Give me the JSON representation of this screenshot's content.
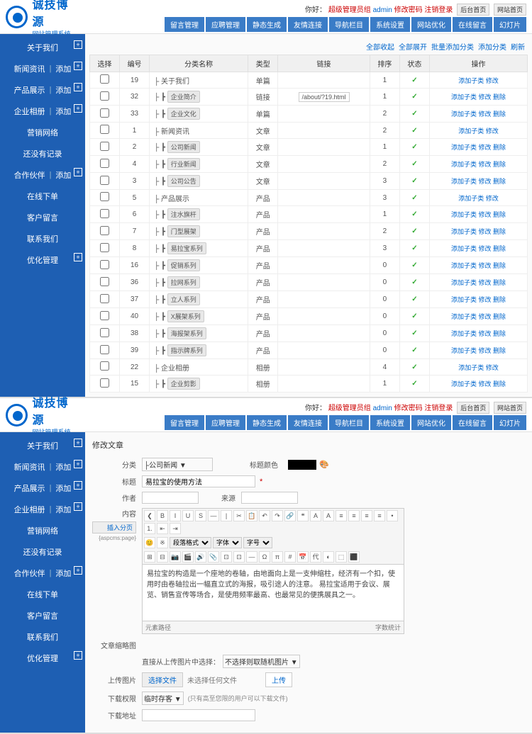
{
  "brand": {
    "main": "诚技博源",
    "sub": "网站管理系统"
  },
  "userbar": {
    "prefix": "你好：",
    "role": "超级管理员组",
    "user": "admin",
    "chpwd": "修改密码",
    "logout": "注销登录",
    "btn1": "后台首页",
    "btn2": "网站首页"
  },
  "nav": [
    "留言管理",
    "应聘管理",
    "静态生成",
    "友情连接",
    "导航栏目",
    "系统设置",
    "网站优化",
    "在线留言",
    "幻灯片"
  ],
  "sidebar": [
    {
      "label": "关于我们",
      "plus": true
    },
    {
      "label": "新闻资讯",
      "extra": "添加",
      "plus": true
    },
    {
      "label": "产品展示",
      "extra": "添加",
      "plus": true
    },
    {
      "label": "企业相册",
      "extra": "添加",
      "plus": true
    },
    {
      "label": "营销网络"
    },
    {
      "label": "还没有记录"
    },
    {
      "label": "合作伙伴",
      "extra": "添加",
      "plus": true
    },
    {
      "label": "在线下单"
    },
    {
      "label": "客户留言"
    },
    {
      "label": "联系我们"
    },
    {
      "label": "优化管理",
      "plus": true
    }
  ],
  "toolbar": [
    "全部收起",
    "全部展开",
    "批量添加分类",
    "添加分类",
    "刷新"
  ],
  "cols": [
    "选择",
    "编号",
    "分类名称",
    "类型",
    "链接",
    "排序",
    "状态",
    "操作"
  ],
  "rows": [
    {
      "id": 19,
      "t": 0,
      "name": "关于我们",
      "type": "单篇",
      "link": "",
      "sort": 1,
      "raw": true
    },
    {
      "id": 32,
      "t": 1,
      "name": "企业简介",
      "type": "链接",
      "link": "/about/?19.html",
      "sort": 1
    },
    {
      "id": 33,
      "t": 1,
      "name": "企业文化",
      "type": "单篇",
      "link": "",
      "sort": 2
    },
    {
      "id": 1,
      "t": 0,
      "name": "新闻资讯",
      "type": "文章",
      "link": "",
      "sort": 2,
      "raw": true
    },
    {
      "id": 2,
      "t": 1,
      "name": "公司新闻",
      "type": "文章",
      "link": "",
      "sort": 1
    },
    {
      "id": 4,
      "t": 1,
      "name": "行业新闻",
      "type": "文章",
      "link": "",
      "sort": 2
    },
    {
      "id": 3,
      "t": 1,
      "name": "公司公告",
      "type": "文章",
      "link": "",
      "sort": 3
    },
    {
      "id": 5,
      "t": 0,
      "name": "产品展示",
      "type": "产品",
      "link": "",
      "sort": 3,
      "raw": true
    },
    {
      "id": 6,
      "t": 1,
      "name": "注水旗杆",
      "type": "产品",
      "link": "",
      "sort": 1
    },
    {
      "id": 7,
      "t": 1,
      "name": "门型展架",
      "type": "产品",
      "link": "",
      "sort": 2
    },
    {
      "id": 8,
      "t": 1,
      "name": "易拉宝系列",
      "type": "产品",
      "link": "",
      "sort": 3
    },
    {
      "id": 16,
      "t": 1,
      "name": "促销系列",
      "type": "产品",
      "link": "",
      "sort": 0
    },
    {
      "id": 36,
      "t": 1,
      "name": "拉网系列",
      "type": "产品",
      "link": "",
      "sort": 0
    },
    {
      "id": 37,
      "t": 1,
      "name": "立人系列",
      "type": "产品",
      "link": "",
      "sort": 0
    },
    {
      "id": 40,
      "t": 1,
      "name": "X展架系列",
      "type": "产品",
      "link": "",
      "sort": 0
    },
    {
      "id": 38,
      "t": 1,
      "name": "海报架系列",
      "type": "产品",
      "link": "",
      "sort": 0
    },
    {
      "id": 39,
      "t": 1,
      "name": "指示牌系列",
      "type": "产品",
      "link": "",
      "sort": 0
    },
    {
      "id": 22,
      "t": 0,
      "name": "企业相册",
      "type": "相册",
      "link": "",
      "sort": 4,
      "raw": true
    },
    {
      "id": 15,
      "t": 1,
      "name": "企业剪影",
      "type": "相册",
      "link": "",
      "sort": 1
    }
  ],
  "op": "添加子类 修改",
  "op2": "添加子类 修改 删除",
  "form": {
    "title": "修改文章",
    "cat_label": "分类",
    "cat_value": " ├公司新闻 ▼",
    "color_label": "标题颜色",
    "subj_label": "标题",
    "subj_value": "易拉宝的使用方法",
    "author_label": "作者",
    "source_label": "来源",
    "content_label": "内容",
    "page_btn": "插入分页",
    "page_tag": "{aspcms:page}",
    "body": "易拉宝的构造是一个座地的卷轴，由地面向上是一支伸缩柱，经济有一个扣，使用时由卷轴拉出一幅直立式的海报，吸引途人的注意。\n\n易拉宝适用于会议、展览、销售宣传等场合，是使用频率最高、也最常见的便携展具之一。",
    "foot_left": "元素路径",
    "foot_right": "字数统计",
    "thumb_label": "文章缩略图",
    "thumb_txt": "直接从上传图片中选择：",
    "thumb_sel": "不选择则取随机图片 ▼",
    "upload_label": "上传图片",
    "upload_btn": "选择文件",
    "upload_txt": "未选择任何文件",
    "upload_act": "上传",
    "dl_label": "下载权限",
    "dl_sel": "临时存客 ▼",
    "dl_txt": "(只有高至您限的用户可以下载文件)",
    "dlurl_label": "下载地址"
  }
}
